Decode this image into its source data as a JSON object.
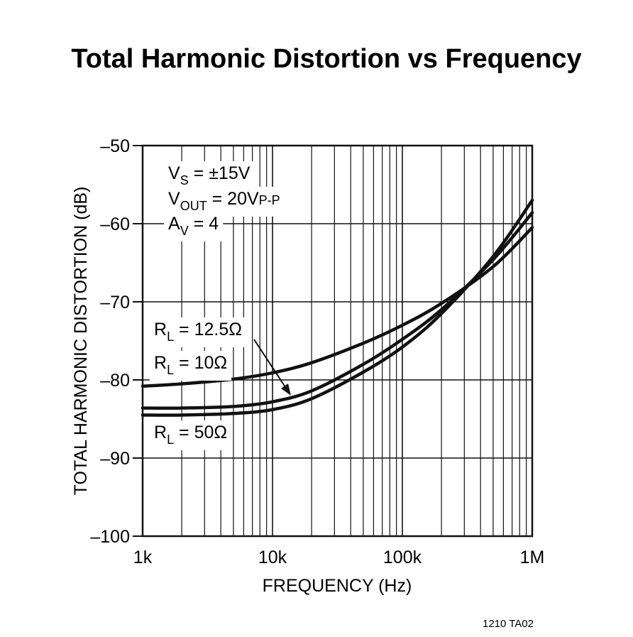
{
  "chart_data": {
    "type": "line",
    "title": "Total Harmonic Distortion vs Frequency",
    "xlabel": "FREQUENCY (Hz)",
    "ylabel": "TOTAL HARMONIC DISTORTION (dB)",
    "x_scale": "log",
    "xlim": [
      1000,
      1000000
    ],
    "ylim": [
      -100,
      -50
    ],
    "x_ticks": [
      {
        "value": 1000,
        "label": "1k"
      },
      {
        "value": 10000,
        "label": "10k"
      },
      {
        "value": 100000,
        "label": "100k"
      },
      {
        "value": 1000000,
        "label": "1M"
      }
    ],
    "y_ticks": [
      {
        "value": -50,
        "label": "–50"
      },
      {
        "value": -60,
        "label": "–60"
      },
      {
        "value": -70,
        "label": "–70"
      },
      {
        "value": -80,
        "label": "–80"
      },
      {
        "value": -90,
        "label": "–90"
      },
      {
        "value": -100,
        "label": "–100"
      }
    ],
    "grid": true,
    "conditions": [
      {
        "main": "V",
        "sub": "S",
        "rest": " = ±15V"
      },
      {
        "main": "V",
        "sub": "OUT",
        "rest": " = 20V",
        "sub2": "P-P"
      },
      {
        "main": "A",
        "sub": "V",
        "rest": " = 4"
      }
    ],
    "series": [
      {
        "name": "RL = 12.5Ω",
        "label": {
          "main": "R",
          "sub": "L",
          "rest": " = 12.5Ω"
        },
        "x": [
          1000,
          2000,
          5000,
          10000,
          20000,
          50000,
          100000,
          200000,
          500000,
          1000000
        ],
        "y": [
          -80.8,
          -80.5,
          -79.9,
          -79.1,
          -77.8,
          -75.3,
          -73.0,
          -70.2,
          -65.5,
          -60.5
        ]
      },
      {
        "name": "RL = 10Ω",
        "label": {
          "main": "R",
          "sub": "L",
          "rest": " = 10Ω"
        },
        "x": [
          1000,
          2000,
          5000,
          10000,
          20000,
          50000,
          100000,
          200000,
          500000,
          1000000
        ],
        "y": [
          -83.6,
          -83.6,
          -83.4,
          -82.8,
          -81.4,
          -78.0,
          -74.8,
          -71.0,
          -64.6,
          -58.6
        ]
      },
      {
        "name": "RL = 50Ω",
        "label": {
          "main": "R",
          "sub": "L",
          "rest": " = 50Ω"
        },
        "x": [
          1000,
          2000,
          5000,
          10000,
          20000,
          50000,
          100000,
          200000,
          500000,
          1000000
        ],
        "y": [
          -84.5,
          -84.5,
          -84.3,
          -83.8,
          -82.4,
          -79.0,
          -75.8,
          -71.5,
          -64.2,
          -57.0
        ]
      }
    ],
    "figure_code": "1210 TA02"
  }
}
